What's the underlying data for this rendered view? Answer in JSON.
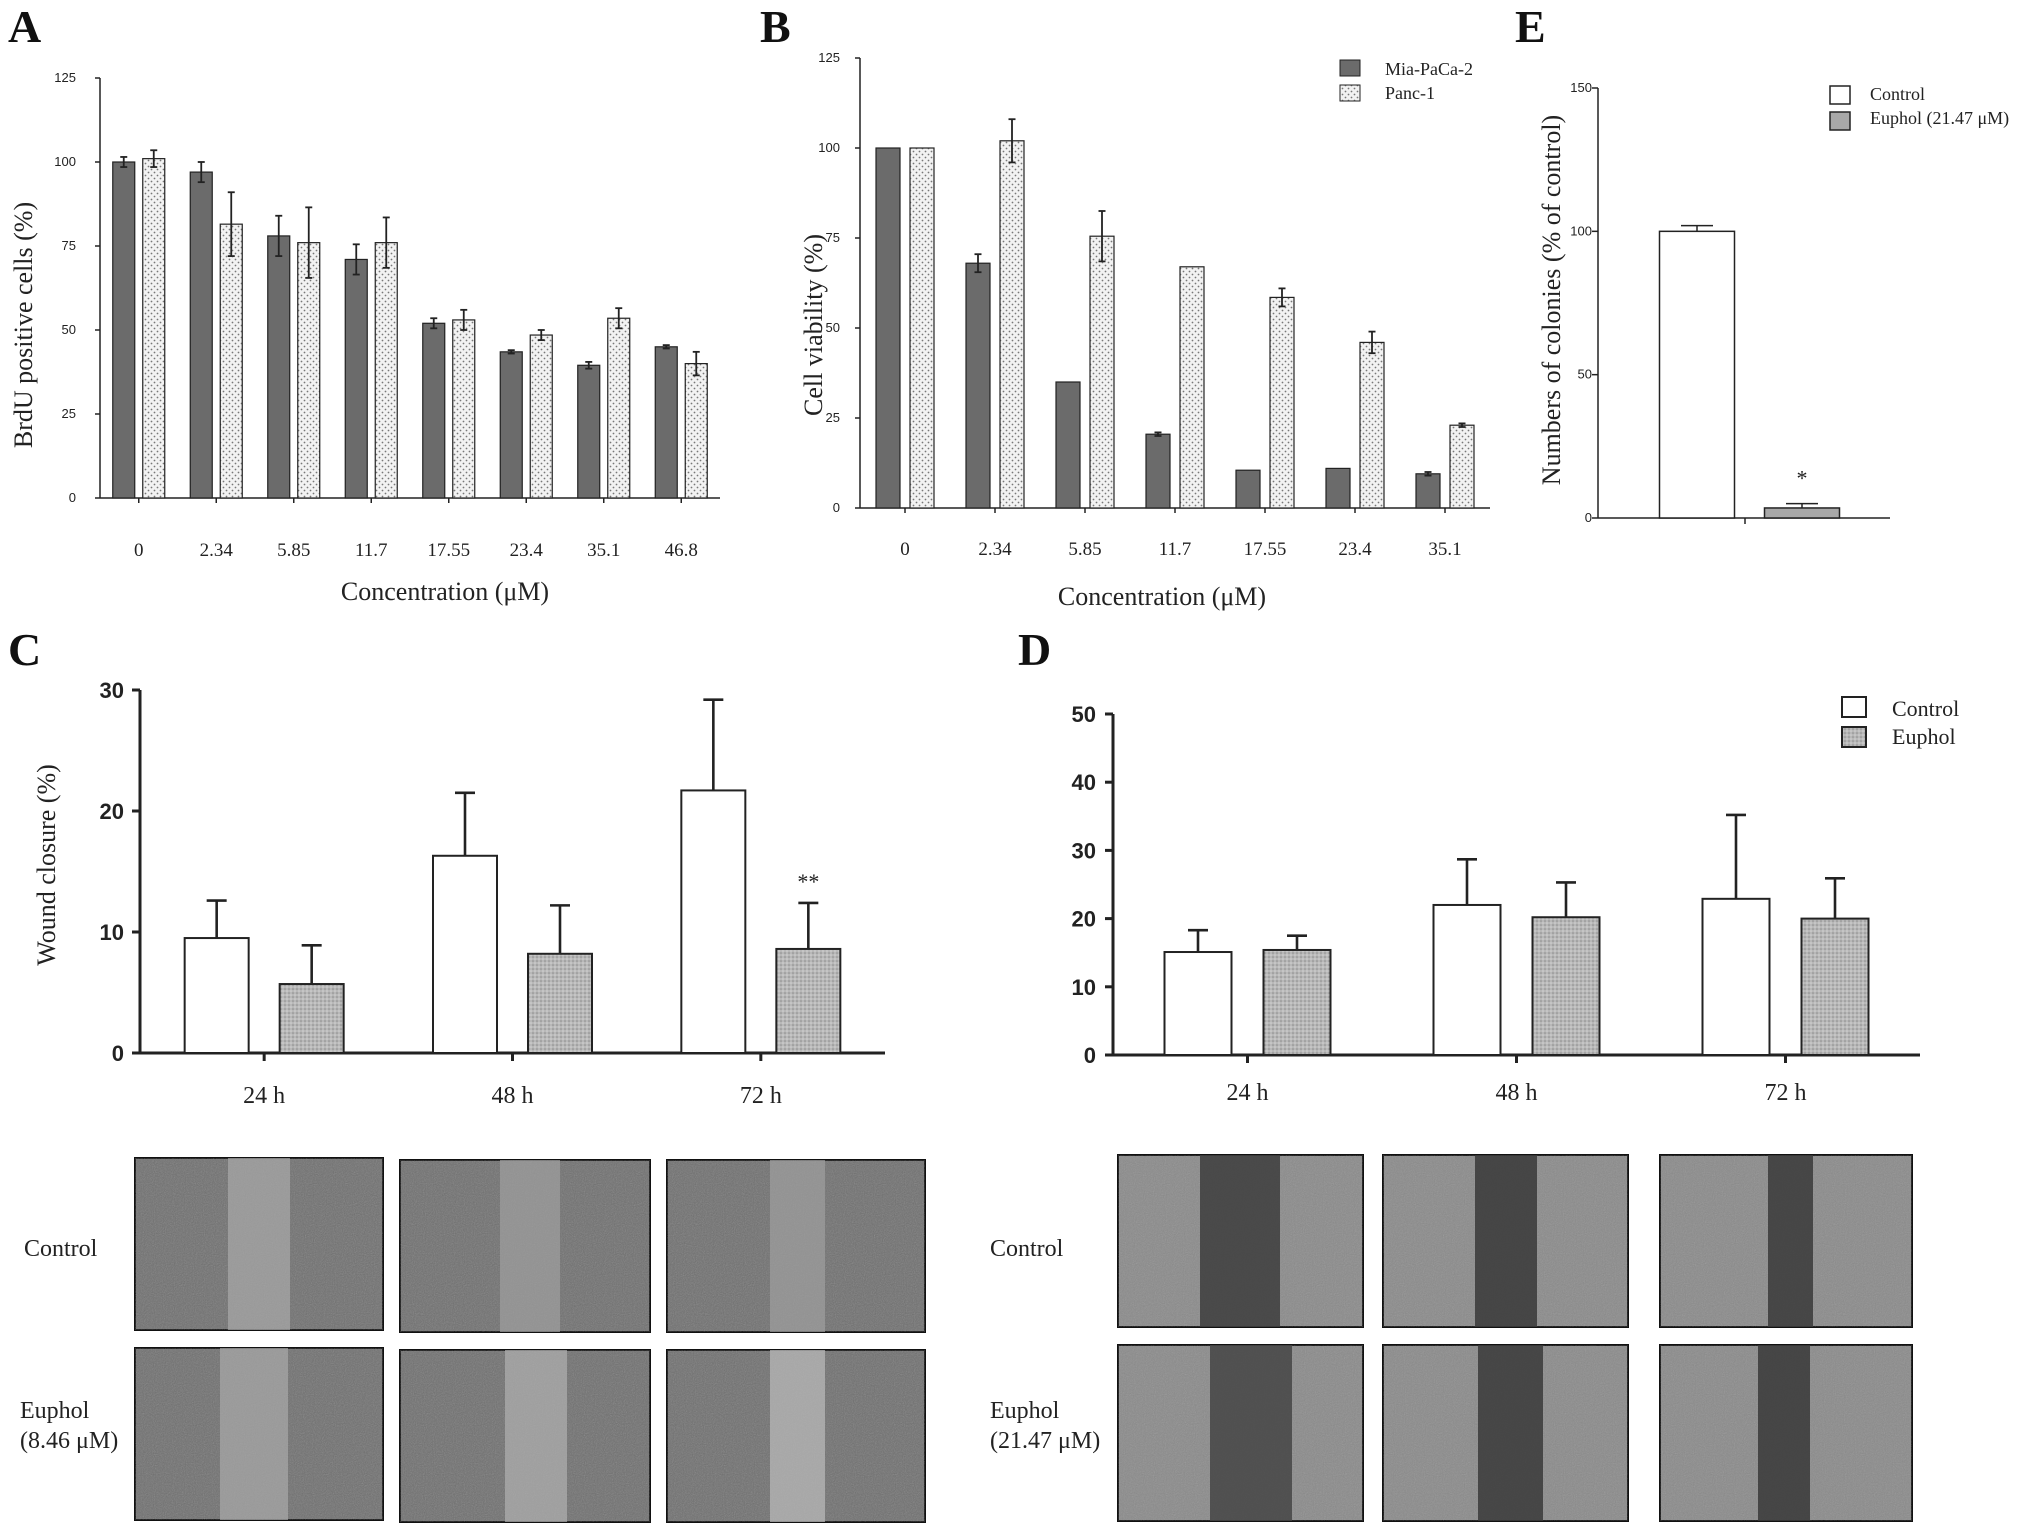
{
  "panels": {
    "A": {
      "letter": "A",
      "chart_data": {
        "type": "bar",
        "ylabel": "BrdU positive cells (%)",
        "xlabel": "Concentration (μM)",
        "ylim": [
          0,
          125
        ],
        "yticks": [
          0,
          25,
          50,
          75,
          100,
          125
        ],
        "categories": [
          "0",
          "2.34",
          "5.85",
          "11.7",
          "17.55",
          "23.4",
          "35.1",
          "46.8"
        ],
        "series": [
          {
            "values": [
              100,
              97,
              78,
              71,
              52,
              43.5,
              39.5,
              45
            ],
            "errors": [
              1.5,
              3,
              6,
              4.5,
              1.5,
              0.5,
              1,
              0.5
            ],
            "fill": "dark"
          },
          {
            "values": [
              101,
              81.5,
              76,
              76,
              53,
              48.5,
              53.5,
              40
            ],
            "errors": [
              2.5,
              9.5,
              10.5,
              7.5,
              3,
              1.5,
              3,
              3.5
            ],
            "fill": "dotted"
          }
        ]
      }
    },
    "B": {
      "letter": "B",
      "chart_data": {
        "type": "bar",
        "ylabel": "Cell viability (%)",
        "xlabel": "Concentration (μM)",
        "ylim": [
          0,
          125
        ],
        "yticks": [
          0,
          25,
          50,
          75,
          100,
          125
        ],
        "categories": [
          "0",
          "2.34",
          "5.85",
          "11.7",
          "17.55",
          "23.4",
          "35.1"
        ],
        "legend": [
          "Mia-PaCa-2",
          "Panc-1"
        ],
        "series": [
          {
            "name": "Mia-PaCa-2",
            "values": [
              100,
              68,
              35,
              20.5,
              10.5,
              11,
              9.5
            ],
            "errors": [
              0,
              2.5,
              0,
              0.5,
              0,
              0,
              0.5
            ],
            "fill": "dark"
          },
          {
            "name": "Panc-1",
            "values": [
              100,
              102,
              75.5,
              67,
              58.5,
              46,
              23
            ],
            "errors": [
              0,
              6,
              7,
              0,
              2.5,
              3,
              0.5
            ],
            "fill": "dotted"
          }
        ]
      }
    },
    "E": {
      "letter": "E",
      "chart_data": {
        "type": "bar",
        "ylabel": "Numbers of colonies (% of control)",
        "ylim": [
          0,
          150
        ],
        "yticks": [
          0,
          50,
          100,
          150
        ],
        "legend": [
          "Control",
          "Euphol (21.47 μM)"
        ],
        "series": [
          {
            "name": "Control",
            "values": [
              100
            ],
            "errors": [
              2
            ],
            "fill": "white"
          },
          {
            "name": "Euphol (21.47 μM)",
            "values": [
              3.5
            ],
            "errors": [
              1.5
            ],
            "fill": "gray",
            "annotation": "*"
          }
        ]
      }
    },
    "C": {
      "letter": "C",
      "chart_data": {
        "type": "bar",
        "ylabel": "Wound closure (%)",
        "ylim": [
          0,
          30
        ],
        "yticks": [
          0,
          10,
          20,
          30
        ],
        "categories": [
          "24 h",
          "48 h",
          "72 h"
        ],
        "series": [
          {
            "values": [
              9.5,
              16.3,
              21.7
            ],
            "errors": [
              3.1,
              5.2,
              7.5
            ],
            "fill": "white"
          },
          {
            "values": [
              5.7,
              8.2,
              8.6
            ],
            "errors": [
              3.2,
              4.0,
              3.8
            ],
            "fill": "gray"
          }
        ],
        "annotations": [
          {
            "category": "72 h",
            "series": 1,
            "text": "**"
          }
        ]
      },
      "rows": [
        "Control",
        "Euphol\n(8.46 μM)"
      ]
    },
    "D": {
      "letter": "D",
      "chart_data": {
        "type": "bar",
        "ylim": [
          0,
          50
        ],
        "yticks": [
          0,
          10,
          20,
          30,
          40,
          50
        ],
        "categories": [
          "24 h",
          "48 h",
          "72 h"
        ],
        "legend": [
          "Control",
          "Euphol"
        ],
        "series": [
          {
            "name": "Control",
            "values": [
              15.1,
              22.0,
              22.9
            ],
            "errors": [
              3.2,
              6.7,
              12.3
            ],
            "fill": "white"
          },
          {
            "name": "Euphol",
            "values": [
              15.4,
              20.2,
              20.0
            ],
            "errors": [
              2.1,
              5.1,
              5.9
            ],
            "fill": "gray"
          }
        ]
      },
      "rows": [
        "Control",
        "Euphol\n(21.47 μM)"
      ]
    }
  }
}
